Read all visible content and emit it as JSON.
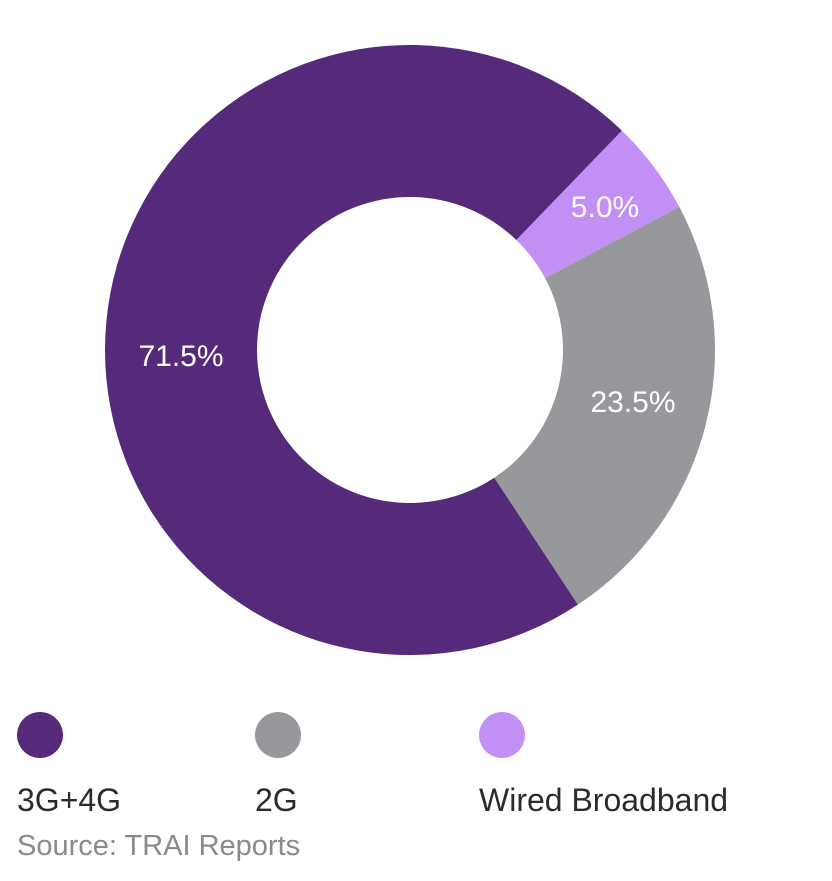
{
  "chart_data": {
    "type": "pie",
    "categories": [
      "3G+4G",
      "2G",
      "Wired Broadband"
    ],
    "values": [
      71.5,
      23.5,
      5.0
    ],
    "data_labels": [
      "71.5%",
      "23.5%",
      "5.0%"
    ],
    "colors": [
      "#552a7b",
      "#97989b",
      "#c28ff5"
    ],
    "donut": true,
    "legend_position": "bottom",
    "source": "Source: TRAI Reports"
  }
}
